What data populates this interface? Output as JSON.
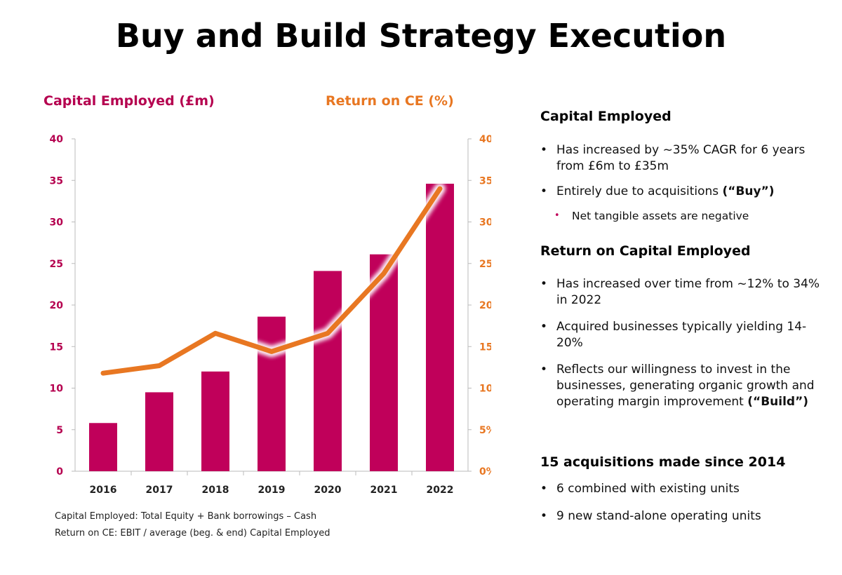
{
  "title": "Buy and Build Strategy Execution",
  "colors": {
    "bar": "#c0005a",
    "line": "#e87722",
    "axis_left_text": "#b5004f",
    "axis_right_text": "#e87722"
  },
  "chart_data": {
    "type": "bar+line",
    "categories": [
      "2016",
      "2017",
      "2018",
      "2019",
      "2020",
      "2021",
      "2022"
    ],
    "series": [
      {
        "name": "Capital Employed (£m)",
        "type": "bar",
        "axis": "left",
        "values": [
          5.8,
          9.5,
          12,
          18.6,
          24.1,
          26.1,
          34.6
        ]
      },
      {
        "name": "Return on CE (%)",
        "type": "line",
        "axis": "right",
        "values": [
          11.8,
          12.7,
          16.6,
          14.4,
          16.6,
          23.8,
          34
        ]
      }
    ],
    "left_axis": {
      "title": "Capital Employed (£m)",
      "ylim": [
        0,
        40
      ],
      "ticks": [
        "0",
        "5",
        "10",
        "15",
        "20",
        "25",
        "30",
        "35",
        "40"
      ]
    },
    "right_axis": {
      "title": "Return on CE (%)",
      "ylim": [
        0,
        40
      ],
      "ticks": [
        "0%",
        "5%",
        "10%",
        "15%",
        "20%",
        "25%",
        "30%",
        "35%",
        "40%"
      ]
    },
    "grid": false
  },
  "footnotes": [
    "Capital Employed: Total Equity + Bank borrowings – Cash",
    "Return on CE:  EBIT / average (beg. & end) Capital Employed"
  ],
  "right_panel": {
    "sections": [
      {
        "heading": "Capital Employed",
        "bullets": [
          {
            "text": "Has increased by ~35% CAGR for 6 years from £6m to £35m"
          },
          {
            "text": "Entirely due to acquisitions ",
            "bold": "(“Buy”)"
          }
        ],
        "sub": "Net tangible assets are negative"
      },
      {
        "heading": "Return on Capital Employed",
        "bullets": [
          {
            "text": "Has increased over time from ~12% to 34% in 2022"
          },
          {
            "text": "Acquired businesses typically yielding 14-20%"
          },
          {
            "text": "Reflects our willingness to invest in the businesses, generating organic growth and operating margin improvement ",
            "bold": "(“Build”)"
          }
        ]
      },
      {
        "heading": "15 acquisitions made since 2014",
        "bullets": [
          {
            "text": "6 combined with existing units"
          },
          {
            "text": "9 new stand-alone operating units"
          }
        ]
      }
    ]
  }
}
